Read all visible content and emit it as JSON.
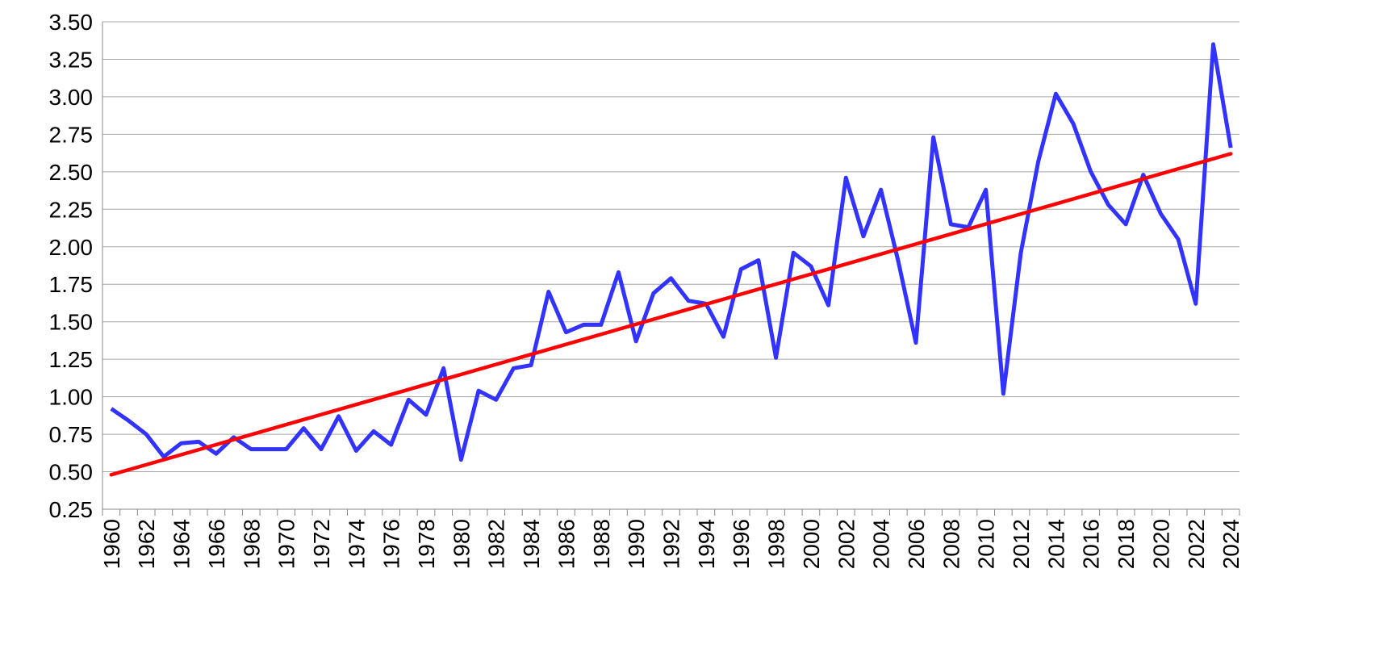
{
  "chart_data": {
    "type": "line",
    "title": "",
    "xlabel": "",
    "ylabel": "",
    "ylim": [
      0.25,
      3.5
    ],
    "ytick_step": 0.25,
    "grid": "horizontal",
    "legend": "none",
    "x": [
      1960,
      1961,
      1962,
      1963,
      1964,
      1965,
      1966,
      1967,
      1968,
      1969,
      1970,
      1971,
      1972,
      1973,
      1974,
      1975,
      1976,
      1977,
      1978,
      1979,
      1980,
      1981,
      1982,
      1983,
      1984,
      1985,
      1986,
      1987,
      1988,
      1989,
      1990,
      1991,
      1992,
      1993,
      1994,
      1995,
      1996,
      1997,
      1998,
      1999,
      2000,
      2001,
      2002,
      2003,
      2004,
      2005,
      2006,
      2007,
      2008,
      2009,
      2010,
      2011,
      2012,
      2013,
      2014,
      2015,
      2016,
      2017,
      2018,
      2019,
      2020,
      2021,
      2022,
      2023,
      2024
    ],
    "xtick_labels": [
      "1960",
      "1962",
      "1964",
      "1966",
      "1968",
      "1970",
      "1972",
      "1974",
      "1976",
      "1978",
      "1980",
      "1982",
      "1984",
      "1986",
      "1988",
      "1990",
      "1992",
      "1994",
      "1996",
      "1998",
      "2000",
      "2002",
      "2004",
      "2006",
      "2008",
      "2010",
      "2012",
      "2014",
      "2016",
      "2018",
      "2020",
      "2022",
      "2024"
    ],
    "ytick_labels": [
      "0.25",
      "0.50",
      "0.75",
      "1.00",
      "1.25",
      "1.50",
      "1.75",
      "2.00",
      "2.25",
      "2.50",
      "2.75",
      "3.00",
      "3.25",
      "3.50"
    ],
    "series": [
      {
        "color": "#3333ff",
        "values": [
          0.92,
          0.84,
          0.75,
          0.6,
          0.69,
          0.7,
          0.62,
          0.73,
          0.65,
          0.65,
          0.65,
          0.79,
          0.65,
          0.87,
          0.64,
          0.77,
          0.68,
          0.98,
          0.88,
          1.19,
          0.58,
          1.04,
          0.98,
          1.19,
          1.21,
          1.7,
          1.43,
          1.48,
          1.48,
          1.83,
          1.37,
          1.69,
          1.79,
          1.64,
          1.62,
          1.4,
          1.85,
          1.91,
          1.26,
          1.96,
          1.87,
          1.61,
          2.46,
          2.07,
          2.38,
          1.9,
          1.36,
          2.73,
          2.15,
          2.13,
          2.38,
          1.02,
          1.96,
          2.57,
          3.02,
          2.82,
          2.5,
          2.28,
          2.15,
          2.48,
          2.22,
          2.05,
          1.62,
          3.35,
          2.66
        ]
      },
      {
        "type": "trendline",
        "color": "#ff0000",
        "values_at_ends": [
          0.48,
          2.62
        ]
      }
    ]
  }
}
